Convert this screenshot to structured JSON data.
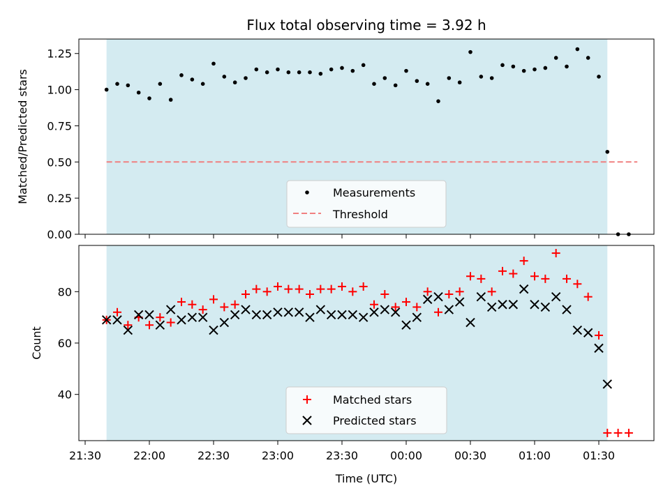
{
  "chart_data": [
    {
      "type": "scatter",
      "title": "Flux total observing time = 3.92 h",
      "xlabel": "",
      "ylabel": "Matched/Predicted stars",
      "ylim": [
        0,
        1.35
      ],
      "yticks": [
        "0.00",
        "0.25",
        "0.50",
        "0.75",
        "1.00",
        "1.25"
      ],
      "shaded_region": {
        "start": "21:40",
        "end": "01:34",
        "color": "#d4ebf1"
      },
      "legend": {
        "position": "bottom-center",
        "entries": [
          "Measurements",
          "Threshold"
        ]
      },
      "threshold": {
        "name": "Threshold",
        "value": 0.5,
        "x_start": "21:40",
        "x_end": "01:48",
        "color": "#f08080"
      },
      "series": [
        {
          "name": "Measurements",
          "color": "#000000",
          "x": [
            "21:40",
            "21:45",
            "21:50",
            "21:55",
            "22:00",
            "22:05",
            "22:10",
            "22:15",
            "22:20",
            "22:25",
            "22:30",
            "22:35",
            "22:40",
            "22:45",
            "22:50",
            "22:55",
            "23:00",
            "23:05",
            "23:10",
            "23:15",
            "23:20",
            "23:25",
            "23:30",
            "23:35",
            "23:40",
            "23:45",
            "23:50",
            "23:55",
            "00:00",
            "00:05",
            "00:10",
            "00:15",
            "00:20",
            "00:25",
            "00:30",
            "00:35",
            "00:40",
            "00:45",
            "00:50",
            "00:55",
            "01:00",
            "01:05",
            "01:10",
            "01:15",
            "01:20",
            "01:25",
            "01:30",
            "01:34",
            "01:39",
            "01:44"
          ],
          "values": [
            1.0,
            1.04,
            1.03,
            0.98,
            0.94,
            1.04,
            0.93,
            1.1,
            1.07,
            1.04,
            1.18,
            1.09,
            1.05,
            1.08,
            1.14,
            1.12,
            1.14,
            1.12,
            1.12,
            1.12,
            1.11,
            1.14,
            1.15,
            1.13,
            1.17,
            1.04,
            1.08,
            1.03,
            1.13,
            1.06,
            1.04,
            0.92,
            1.08,
            1.05,
            1.26,
            1.09,
            1.08,
            1.17,
            1.16,
            1.13,
            1.14,
            1.15,
            1.22,
            1.16,
            1.28,
            1.22,
            1.09,
            0.57,
            0.0,
            0.0
          ]
        }
      ]
    },
    {
      "type": "scatter",
      "title": "",
      "xlabel": "Time (UTC)",
      "ylabel": "Count",
      "ylim": [
        22,
        98
      ],
      "yticks": [
        "40",
        "60",
        "80"
      ],
      "xticks": [
        "21:30",
        "22:00",
        "22:30",
        "23:00",
        "23:30",
        "00:00",
        "00:30",
        "01:00",
        "01:30"
      ],
      "shaded_region": {
        "start": "21:40",
        "end": "01:34",
        "color": "#d4ebf1"
      },
      "legend": {
        "position": "bottom-center",
        "entries": [
          "Matched stars",
          "Predicted stars"
        ]
      },
      "series": [
        {
          "name": "Matched stars",
          "color": "#ff0000",
          "marker": "plus",
          "x": [
            "21:40",
            "21:45",
            "21:50",
            "21:55",
            "22:00",
            "22:05",
            "22:10",
            "22:15",
            "22:20",
            "22:25",
            "22:30",
            "22:35",
            "22:40",
            "22:45",
            "22:50",
            "22:55",
            "23:00",
            "23:05",
            "23:10",
            "23:15",
            "23:20",
            "23:25",
            "23:30",
            "23:35",
            "23:40",
            "23:45",
            "23:50",
            "23:55",
            "00:00",
            "00:05",
            "00:10",
            "00:15",
            "00:20",
            "00:25",
            "00:30",
            "00:35",
            "00:40",
            "00:45",
            "00:50",
            "00:55",
            "01:00",
            "01:05",
            "01:10",
            "01:15",
            "01:20",
            "01:25",
            "01:30",
            "01:34",
            "01:39",
            "01:44"
          ],
          "values": [
            69,
            72,
            67,
            70,
            67,
            70,
            68,
            76,
            75,
            73,
            77,
            74,
            75,
            79,
            81,
            80,
            82,
            81,
            81,
            79,
            81,
            81,
            82,
            80,
            82,
            75,
            79,
            74,
            76,
            74,
            80,
            72,
            79,
            80,
            86,
            85,
            80,
            88,
            87,
            92,
            86,
            85,
            95,
            85,
            83,
            78,
            63,
            25,
            25,
            25
          ]
        },
        {
          "name": "Predicted stars",
          "color": "#000000",
          "marker": "x",
          "x": [
            "21:40",
            "21:45",
            "21:50",
            "21:55",
            "22:00",
            "22:05",
            "22:10",
            "22:15",
            "22:20",
            "22:25",
            "22:30",
            "22:35",
            "22:40",
            "22:45",
            "22:50",
            "22:55",
            "23:00",
            "23:05",
            "23:10",
            "23:15",
            "23:20",
            "23:25",
            "23:30",
            "23:35",
            "23:40",
            "23:45",
            "23:50",
            "23:55",
            "00:00",
            "00:05",
            "00:10",
            "00:15",
            "00:20",
            "00:25",
            "00:30",
            "00:35",
            "00:40",
            "00:45",
            "00:50",
            "00:55",
            "01:00",
            "01:05",
            "01:10",
            "01:15",
            "01:20",
            "01:25",
            "01:30",
            "01:34"
          ],
          "values": [
            69,
            69,
            65,
            71,
            71,
            67,
            73,
            69,
            70,
            70,
            65,
            68,
            71,
            73,
            71,
            71,
            72,
            72,
            72,
            70,
            73,
            71,
            71,
            71,
            70,
            72,
            73,
            72,
            67,
            70,
            77,
            78,
            73,
            76,
            68,
            78,
            74,
            75,
            75,
            81,
            75,
            74,
            78,
            73,
            65,
            64,
            58,
            44
          ]
        }
      ]
    }
  ]
}
